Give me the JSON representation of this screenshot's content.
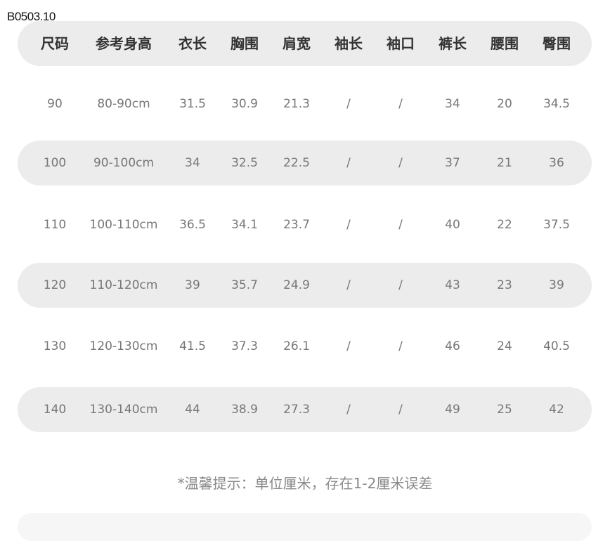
{
  "product_code": "B0503.10",
  "table": {
    "headers": [
      "尺码",
      "参考身高",
      "衣长",
      "胸围",
      "肩宽",
      "袖长",
      "袖口",
      "裤长",
      "腰围",
      "臀围"
    ],
    "rows": [
      [
        "90",
        "80-90cm",
        "31.5",
        "30.9",
        "21.3",
        "/",
        "/",
        "34",
        "20",
        "34.5"
      ],
      [
        "100",
        "90-100cm",
        "34",
        "32.5",
        "22.5",
        "/",
        "/",
        "37",
        "21",
        "36"
      ],
      [
        "110",
        "100-110cm",
        "36.5",
        "34.1",
        "23.7",
        "/",
        "/",
        "40",
        "22",
        "37.5"
      ],
      [
        "120",
        "110-120cm",
        "39",
        "35.7",
        "24.9",
        "/",
        "/",
        "43",
        "23",
        "39"
      ],
      [
        "130",
        "120-130cm",
        "41.5",
        "37.3",
        "26.1",
        "/",
        "/",
        "46",
        "24",
        "40.5"
      ],
      [
        "140",
        "130-140cm",
        "44",
        "38.9",
        "27.3",
        "/",
        "/",
        "49",
        "25",
        "42"
      ]
    ]
  },
  "note": "*温馨提示：单位厘米，存在1-2厘米误差",
  "colors": {
    "band": "#ececec",
    "header_text": "#333333",
    "cell_text": "#777777"
  }
}
